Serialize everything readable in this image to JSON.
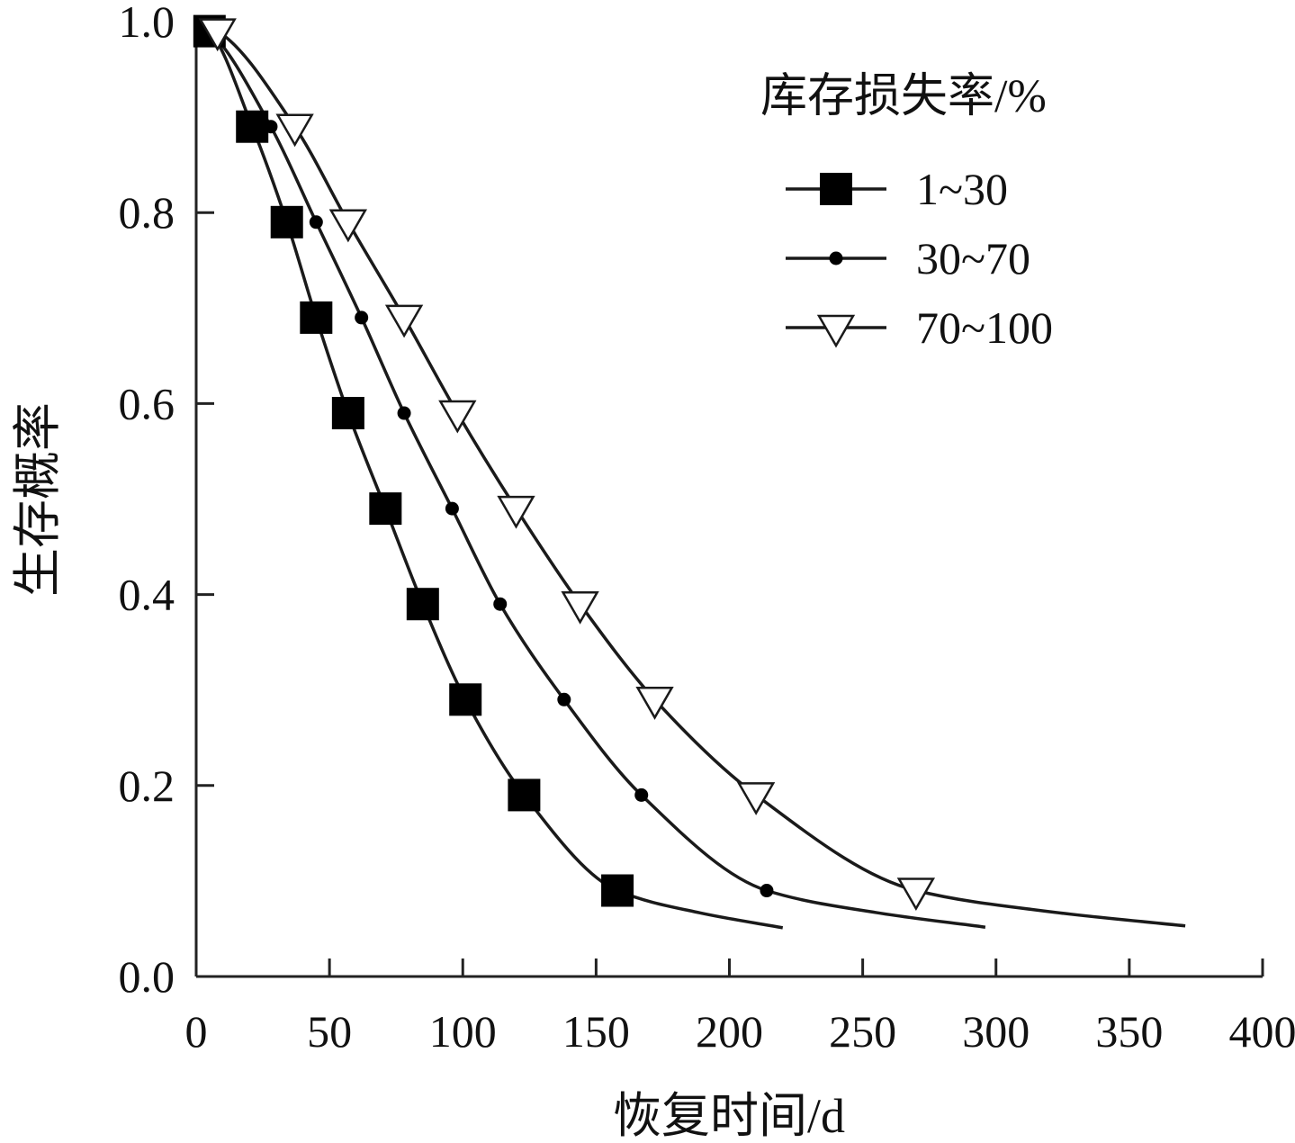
{
  "chart_data": {
    "type": "line",
    "xlabel": "恢复时间/d",
    "ylabel": "生存概率",
    "xlim": [
      0,
      400
    ],
    "ylim": [
      0,
      1.0
    ],
    "x_ticks": [
      "0",
      "50",
      "100",
      "150",
      "200",
      "250",
      "300",
      "350",
      "400"
    ],
    "y_ticks": [
      "0.0",
      "0.2",
      "0.4",
      "0.6",
      "0.8",
      "1.0"
    ],
    "grid": false,
    "legend": {
      "title": "库存损失率/%",
      "placement": "top-right"
    },
    "series": [
      {
        "name": "1~30",
        "marker": "square",
        "x_end": 220,
        "points": [
          [
            5,
            0.99
          ],
          [
            21,
            0.89
          ],
          [
            34,
            0.79
          ],
          [
            45,
            0.69
          ],
          [
            57,
            0.59
          ],
          [
            71,
            0.49
          ],
          [
            85,
            0.39
          ],
          [
            101,
            0.29
          ],
          [
            123,
            0.19
          ],
          [
            158,
            0.09
          ]
        ]
      },
      {
        "name": "30~70",
        "marker": "circle",
        "x_end": 296,
        "points": [
          [
            5,
            0.99
          ],
          [
            28,
            0.89
          ],
          [
            45,
            0.79
          ],
          [
            62,
            0.69
          ],
          [
            78,
            0.59
          ],
          [
            96,
            0.49
          ],
          [
            114,
            0.39
          ],
          [
            138,
            0.29
          ],
          [
            167,
            0.19
          ],
          [
            214,
            0.09
          ]
        ]
      },
      {
        "name": "70~100",
        "marker": "triangle-down",
        "x_end": 371,
        "points": [
          [
            8,
            0.99
          ],
          [
            37,
            0.89
          ],
          [
            57,
            0.79
          ],
          [
            78,
            0.69
          ],
          [
            98,
            0.59
          ],
          [
            120,
            0.49
          ],
          [
            144,
            0.39
          ],
          [
            172,
            0.29
          ],
          [
            210,
            0.19
          ],
          [
            270,
            0.09
          ]
        ]
      }
    ],
    "colors": {
      "line": "#1a1a1a",
      "marker_fill": "#000000",
      "marker_open": "#ffffff"
    }
  }
}
